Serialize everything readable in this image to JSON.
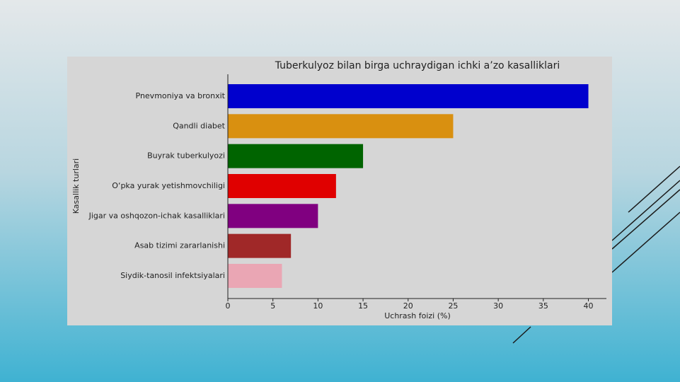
{
  "chart_data": {
    "type": "barh",
    "title": "Tuberkulyoz bilan birga uchraydigan ichki a’zo kasalliklari",
    "x_label": "Uchrash foizi (%)",
    "y_label": "Kasallik turlari",
    "categories": [
      "Pnevmoniya va bronxit",
      "Qandli diabet",
      "Buyrak tuberkulyozi",
      "O‘pka yurak yetishmovchiligi",
      "Jigar va oshqozon-ichak kasalliklari",
      "Asab tizimi zararlanishi",
      "Siydik-tanosil infektsiyalari"
    ],
    "values": [
      40,
      25,
      15,
      12,
      10,
      7,
      6
    ],
    "colors": [
      "#0000cd",
      "#d99010",
      "#006400",
      "#e00000",
      "#800080",
      "#a02828",
      "#eaa6b4"
    ],
    "xlim": [
      0,
      42
    ],
    "xticks": [
      0,
      5,
      10,
      15,
      20,
      25,
      30,
      35,
      40
    ]
  }
}
